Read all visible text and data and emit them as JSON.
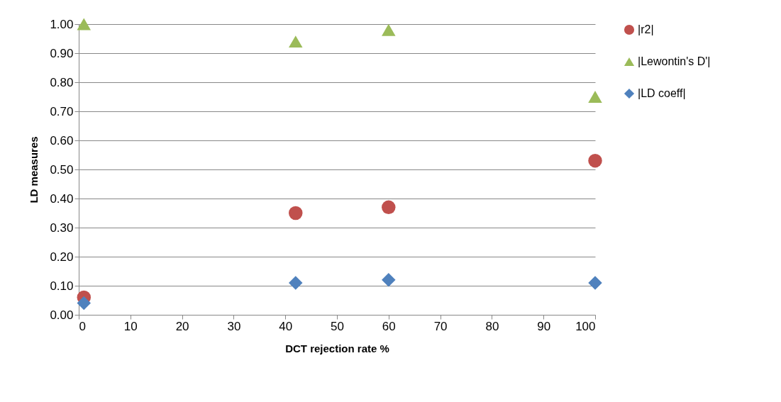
{
  "chart_data": {
    "type": "scatter",
    "xlabel": "DCT rejection rate %",
    "ylabel": "LD measures",
    "x": [
      1,
      42,
      60,
      100
    ],
    "series": [
      {
        "name": "|r2|",
        "color": "#c0504d",
        "marker": "circle",
        "values": [
          0.06,
          0.35,
          0.37,
          0.53
        ]
      },
      {
        "name": "|Lewontin's D'|",
        "color": "#9bbb59",
        "marker": "triangle",
        "values": [
          1.0,
          0.94,
          0.98,
          0.75
        ]
      },
      {
        "name": "|LD coeff|",
        "color": "#4f81bd",
        "marker": "diamond",
        "values": [
          0.04,
          0.11,
          0.12,
          0.11
        ]
      }
    ],
    "xlim": [
      0,
      100
    ],
    "xticks": [
      0,
      10,
      20,
      30,
      40,
      50,
      60,
      70,
      80,
      90,
      100
    ],
    "ylim": [
      0,
      1.0
    ],
    "yticks": [
      {
        "value": 0,
        "label": "0.00"
      },
      {
        "value": 0.1,
        "label": "0.10"
      },
      {
        "value": 0.2,
        "label": "0.20"
      },
      {
        "value": 0.3,
        "label": "0.30"
      },
      {
        "value": 0.4,
        "label": "0.40"
      },
      {
        "value": 0.5,
        "label": "0.50"
      },
      {
        "value": 0.6,
        "label": "0.60"
      },
      {
        "value": 0.7,
        "label": "0.70"
      },
      {
        "value": 0.8,
        "label": "0.80"
      },
      {
        "value": 0.9,
        "label": "0.90"
      },
      {
        "value": 1.0,
        "label": "1.00"
      }
    ],
    "grid": "y",
    "legend": "right"
  }
}
